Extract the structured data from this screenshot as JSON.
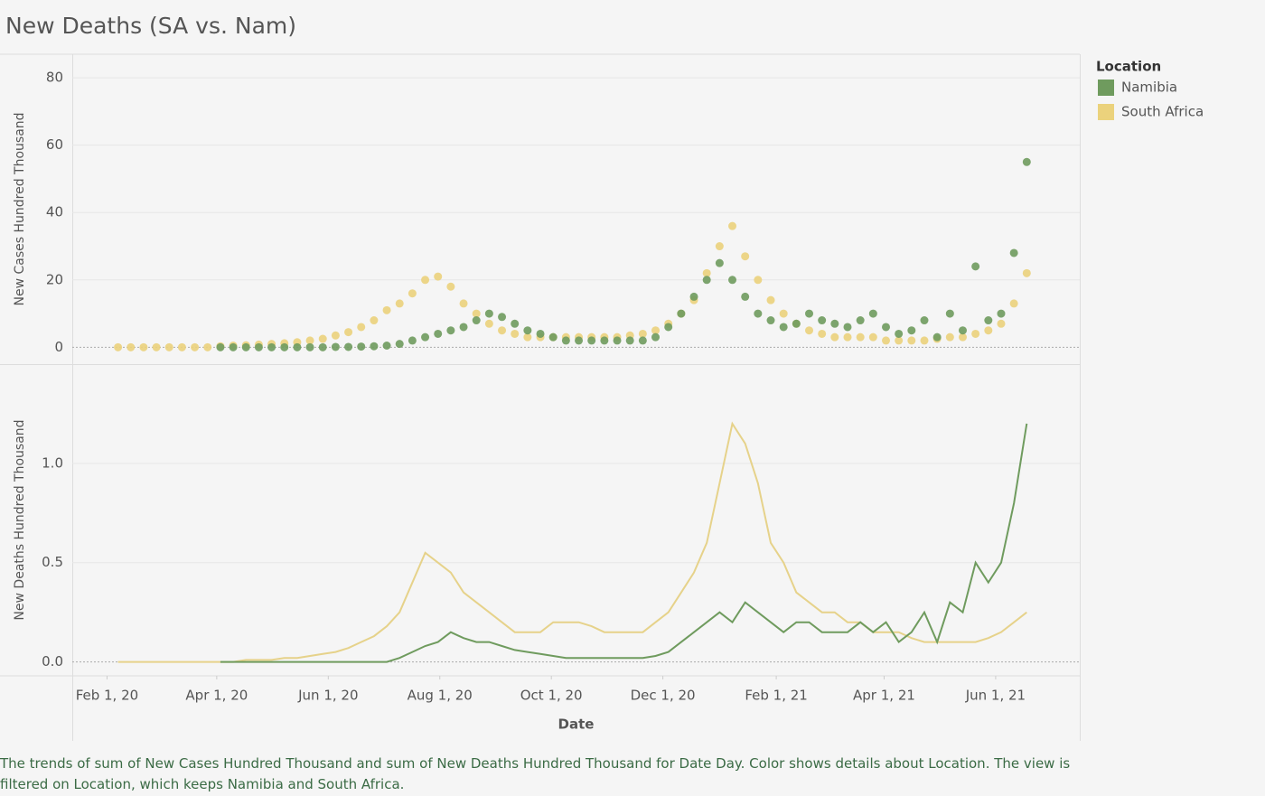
{
  "title": "New Deaths (SA vs. Nam)",
  "caption": "The trends of sum of New Cases Hundred Thousand and sum of New Deaths Hundred Thousand for Date Day.  Color shows details about Location. The view is filtered on Location, which keeps Namibia and South Africa.",
  "chart_data": [
    {
      "type": "scatter",
      "y_label": "New Cases Hundred Thousand",
      "legend_title": "Location",
      "legend": "right",
      "grid": true,
      "x": [
        "2020-02-07",
        "2020-02-14",
        "2020-02-21",
        "2020-02-28",
        "2020-03-06",
        "2020-03-13",
        "2020-03-20",
        "2020-03-27",
        "2020-04-03",
        "2020-04-10",
        "2020-04-17",
        "2020-04-24",
        "2020-05-01",
        "2020-05-08",
        "2020-05-15",
        "2020-05-22",
        "2020-05-29",
        "2020-06-05",
        "2020-06-12",
        "2020-06-19",
        "2020-06-26",
        "2020-07-03",
        "2020-07-10",
        "2020-07-17",
        "2020-07-24",
        "2020-07-31",
        "2020-08-07",
        "2020-08-14",
        "2020-08-21",
        "2020-08-28",
        "2020-09-04",
        "2020-09-11",
        "2020-09-18",
        "2020-09-25",
        "2020-10-02",
        "2020-10-09",
        "2020-10-16",
        "2020-10-23",
        "2020-10-30",
        "2020-11-06",
        "2020-11-13",
        "2020-11-20",
        "2020-11-27",
        "2020-12-04",
        "2020-12-11",
        "2020-12-18",
        "2020-12-25",
        "2021-01-01",
        "2021-01-08",
        "2021-01-15",
        "2021-01-22",
        "2021-01-29",
        "2021-02-05",
        "2021-02-12",
        "2021-02-19",
        "2021-02-26",
        "2021-03-05",
        "2021-03-12",
        "2021-03-19",
        "2021-03-26",
        "2021-04-02",
        "2021-04-09",
        "2021-04-16",
        "2021-04-23",
        "2021-04-30",
        "2021-05-07",
        "2021-05-14",
        "2021-05-21",
        "2021-05-28",
        "2021-06-04",
        "2021-06-11",
        "2021-06-18"
      ],
      "xlim": [
        "2020-01-13",
        "2021-07-17"
      ],
      "ylim": [
        -5,
        87
      ],
      "yticks": [
        0,
        20,
        40,
        60,
        80
      ],
      "series": [
        {
          "name": "South Africa",
          "color": "#ebd27c",
          "values": [
            0,
            0,
            0,
            0,
            0,
            0,
            0,
            0,
            0.3,
            0.5,
            0.6,
            0.8,
            1,
            1.2,
            1.5,
            2,
            2.5,
            3.5,
            4.5,
            6,
            8,
            11,
            13,
            16,
            20,
            21,
            18,
            13,
            10,
            7,
            5,
            4,
            3,
            3,
            3,
            3,
            3,
            3,
            3,
            3,
            3.5,
            4,
            5,
            7,
            10,
            14,
            22,
            30,
            36,
            27,
            20,
            14,
            10,
            7,
            5,
            4,
            3,
            3,
            3,
            3,
            2,
            2,
            2,
            2,
            2.5,
            3,
            3,
            4,
            5,
            7,
            13,
            22
          ]
        },
        {
          "name": "Namibia",
          "color": "#6f9b5e",
          "values": [
            null,
            null,
            null,
            null,
            null,
            null,
            null,
            null,
            0,
            0,
            0,
            0,
            0,
            0,
            0,
            0,
            0,
            0.1,
            0.1,
            0.2,
            0.3,
            0.5,
            1,
            2,
            3,
            4,
            5,
            6,
            8,
            10,
            9,
            7,
            5,
            4,
            3,
            2,
            2,
            2,
            2,
            2,
            2,
            2,
            3,
            6,
            10,
            15,
            20,
            25,
            20,
            15,
            10,
            8,
            6,
            7,
            10,
            8,
            7,
            6,
            8,
            10,
            6,
            4,
            5,
            8,
            3,
            10,
            5,
            24,
            8,
            10,
            28,
            55
          ]
        }
      ]
    },
    {
      "type": "line",
      "y_label": "New Deaths Hundred Thousand",
      "x_label": "Date",
      "x": [
        "2020-02-07",
        "2020-02-14",
        "2020-02-21",
        "2020-02-28",
        "2020-03-06",
        "2020-03-13",
        "2020-03-20",
        "2020-03-27",
        "2020-04-03",
        "2020-04-10",
        "2020-04-17",
        "2020-04-24",
        "2020-05-01",
        "2020-05-08",
        "2020-05-15",
        "2020-05-22",
        "2020-05-29",
        "2020-06-05",
        "2020-06-12",
        "2020-06-19",
        "2020-06-26",
        "2020-07-03",
        "2020-07-10",
        "2020-07-17",
        "2020-07-24",
        "2020-07-31",
        "2020-08-07",
        "2020-08-14",
        "2020-08-21",
        "2020-08-28",
        "2020-09-04",
        "2020-09-11",
        "2020-09-18",
        "2020-09-25",
        "2020-10-02",
        "2020-10-09",
        "2020-10-16",
        "2020-10-23",
        "2020-10-30",
        "2020-11-06",
        "2020-11-13",
        "2020-11-20",
        "2020-11-27",
        "2020-12-04",
        "2020-12-11",
        "2020-12-18",
        "2020-12-25",
        "2021-01-01",
        "2021-01-08",
        "2021-01-15",
        "2021-01-22",
        "2021-01-29",
        "2021-02-05",
        "2021-02-12",
        "2021-02-19",
        "2021-02-26",
        "2021-03-05",
        "2021-03-12",
        "2021-03-19",
        "2021-03-26",
        "2021-04-02",
        "2021-04-09",
        "2021-04-16",
        "2021-04-23",
        "2021-04-30",
        "2021-05-07",
        "2021-05-14",
        "2021-05-21",
        "2021-05-28",
        "2021-06-04",
        "2021-06-11",
        "2021-06-18"
      ],
      "xlim": [
        "2020-01-13",
        "2021-07-17"
      ],
      "xticks": [
        {
          "value": "2020-02-01",
          "label": "Feb 1, 20"
        },
        {
          "value": "2020-04-01",
          "label": "Apr 1, 20"
        },
        {
          "value": "2020-06-01",
          "label": "Jun 1, 20"
        },
        {
          "value": "2020-08-01",
          "label": "Aug 1, 20"
        },
        {
          "value": "2020-10-01",
          "label": "Oct 1, 20"
        },
        {
          "value": "2020-12-01",
          "label": "Dec 1, 20"
        },
        {
          "value": "2021-02-01",
          "label": "Feb 1, 21"
        },
        {
          "value": "2021-04-01",
          "label": "Apr 1, 21"
        },
        {
          "value": "2021-06-01",
          "label": "Jun 1, 21"
        }
      ],
      "ylim": [
        -0.07,
        1.5
      ],
      "yticks": [
        {
          "value": 0,
          "label": "0.0"
        },
        0.5,
        {
          "value": 1,
          "label": "1.0"
        }
      ],
      "series": [
        {
          "name": "South Africa",
          "color": "#e6d28a",
          "values": [
            0,
            0,
            0,
            0,
            0,
            0,
            0,
            0,
            0,
            0,
            0.01,
            0.01,
            0.01,
            0.02,
            0.02,
            0.03,
            0.04,
            0.05,
            0.07,
            0.1,
            0.13,
            0.18,
            0.25,
            0.4,
            0.55,
            0.5,
            0.45,
            0.35,
            0.3,
            0.25,
            0.2,
            0.15,
            0.15,
            0.15,
            0.2,
            0.2,
            0.2,
            0.18,
            0.15,
            0.15,
            0.15,
            0.15,
            0.2,
            0.25,
            0.35,
            0.45,
            0.6,
            0.9,
            1.2,
            1.1,
            0.9,
            0.6,
            0.5,
            0.35,
            0.3,
            0.25,
            0.25,
            0.2,
            0.2,
            0.15,
            0.15,
            0.15,
            0.12,
            0.1,
            0.1,
            0.1,
            0.1,
            0.1,
            0.12,
            0.15,
            0.2,
            0.25
          ]
        },
        {
          "name": "Namibia",
          "color": "#6f9b5e",
          "values": [
            null,
            null,
            null,
            null,
            null,
            null,
            null,
            null,
            0,
            0,
            0,
            0,
            0,
            0,
            0,
            0,
            0,
            0,
            0,
            0,
            0,
            0,
            0.02,
            0.05,
            0.08,
            0.1,
            0.15,
            0.12,
            0.1,
            0.1,
            0.08,
            0.06,
            0.05,
            0.04,
            0.03,
            0.02,
            0.02,
            0.02,
            0.02,
            0.02,
            0.02,
            0.02,
            0.03,
            0.05,
            0.1,
            0.15,
            0.2,
            0.25,
            0.2,
            0.3,
            0.25,
            0.2,
            0.15,
            0.2,
            0.2,
            0.15,
            0.15,
            0.15,
            0.2,
            0.15,
            0.2,
            0.1,
            0.15,
            0.25,
            0.1,
            0.3,
            0.25,
            0.5,
            0.4,
            0.5,
            0.8,
            1.2
          ]
        }
      ]
    }
  ]
}
